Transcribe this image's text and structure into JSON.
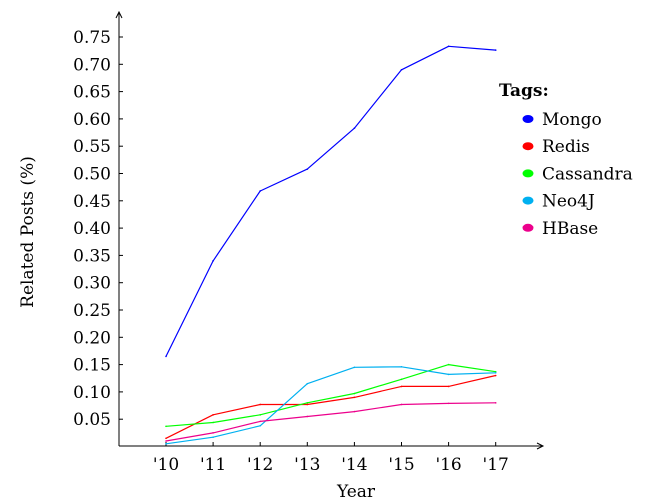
{
  "chart_data": {
    "type": "line",
    "xlabel": "Year",
    "ylabel": "Related Posts (%)",
    "categories": [
      "'10",
      "'11",
      "'12",
      "'13",
      "'14",
      "'15",
      "'16",
      "'17"
    ],
    "y_ticks": [
      "0.05",
      "0.10",
      "0.15",
      "0.20",
      "0.25",
      "0.30",
      "0.35",
      "0.40",
      "0.45",
      "0.50",
      "0.55",
      "0.60",
      "0.65",
      "0.70",
      "0.75"
    ],
    "ylim": [
      0.0,
      0.77
    ],
    "grid": false,
    "legend": {
      "title": "Tags:",
      "placement": "right"
    },
    "series": [
      {
        "name": "Mongo",
        "color": "#0000ff",
        "values": [
          0.165,
          0.34,
          0.468,
          0.508,
          0.583,
          0.69,
          0.733,
          0.726
        ]
      },
      {
        "name": "Redis",
        "color": "#ff0000",
        "values": [
          0.015,
          0.058,
          0.077,
          0.077,
          0.09,
          0.11,
          0.11,
          0.13
        ]
      },
      {
        "name": "Cassandra",
        "color": "#00ff00",
        "values": [
          0.037,
          0.044,
          0.058,
          0.08,
          0.097,
          0.123,
          0.15,
          0.137
        ]
      },
      {
        "name": "Neo4J",
        "color": "#00b0f0",
        "values": [
          0.005,
          0.017,
          0.038,
          0.115,
          0.145,
          0.146,
          0.132,
          0.135
        ]
      },
      {
        "name": "HBase",
        "color": "#ec008c",
        "values": [
          0.01,
          0.025,
          0.046,
          0.055,
          0.064,
          0.077,
          0.079,
          0.08
        ]
      }
    ]
  }
}
